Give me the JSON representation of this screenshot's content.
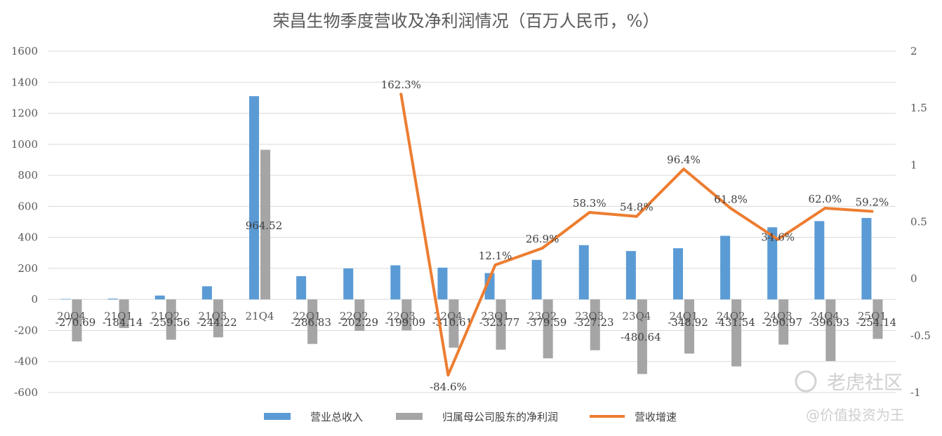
{
  "chart_data": {
    "type": "bar",
    "title": "荣昌生物季度营收及净利润情况（百万人民币，%）",
    "categories": [
      "20Q4",
      "21Q1",
      "21Q2",
      "21Q3",
      "21Q4",
      "22Q1",
      "22Q2",
      "22Q3",
      "22Q4",
      "23Q1",
      "23Q2",
      "23Q3",
      "23Q4",
      "24Q1",
      "24Q2",
      "24Q3",
      "24Q4",
      "25Q1"
    ],
    "category_labels": [
      "20Q4",
      "21Q1",
      "21Q2",
      "21Q3",
      "21Q4",
      "22Q1",
      "22Q2",
      "22Q3",
      "22Q4",
      "23Q1",
      "23Q2",
      "23Q3",
      "23Q4",
      "24Q1",
      "24Q2",
      "24Q3",
      "24Q4",
      "25Q1"
    ],
    "y_left": {
      "min": -600,
      "max": 1600,
      "ticks": [
        1600,
        1400,
        1200,
        1000,
        800,
        600,
        400,
        200,
        0,
        -200,
        -400,
        -600
      ],
      "tick_labels": [
        "1600",
        "1400",
        "1200",
        "1000",
        "800",
        "600",
        "400",
        "200",
        "0",
        "-200",
        "-400",
        "-600"
      ]
    },
    "y_right": {
      "min": -1,
      "max": 2,
      "ticks": [
        2,
        1.5,
        1,
        0.5,
        0,
        -0.5,
        -1
      ],
      "tick_labels": [
        "2",
        "1.5",
        "1",
        "0.5",
        "0",
        "-0.5",
        "-1"
      ]
    },
    "grid": true,
    "legend_position": "bottom",
    "series": [
      {
        "name": "营业总收入",
        "type": "bar",
        "axis": "left",
        "color": "#5b9bd5",
        "values": [
          3,
          5,
          25,
          85,
          1310,
          150,
          200,
          220,
          205,
          170,
          255,
          350,
          312,
          330,
          410,
          465,
          505,
          525
        ]
      },
      {
        "name": "归属母公司股东的净利润",
        "type": "bar",
        "axis": "left",
        "color": "#a5a5a5",
        "values": [
          -270.69,
          -184.14,
          -259.56,
          -244.22,
          964.52,
          -286.83,
          -202.29,
          -199.09,
          -310.61,
          -323.77,
          -379.59,
          -327.23,
          -480.64,
          -348.92,
          -431.54,
          -290.97,
          -396.93,
          -254.14
        ],
        "labels": [
          "-270.69",
          "-184.14",
          "-259.56",
          "-244.22",
          "964.52",
          "-286.83",
          "-202.29",
          "-199.09",
          "-310.61",
          "-323.77",
          "-379.59",
          "-327.23",
          "-480.64",
          "-348.92",
          "-431.54",
          "-290.97",
          "-396.93",
          "-254.14"
        ]
      },
      {
        "name": "营收增速",
        "type": "line",
        "axis": "right",
        "color": "#ed7d31",
        "points": [
          {
            "cat": "22Q3",
            "value": 1.623,
            "label": "162.3%"
          },
          {
            "cat": "22Q4",
            "value": -0.846,
            "label": "-84.6%"
          },
          {
            "cat": "23Q1",
            "value": 0.121,
            "label": "12.1%"
          },
          {
            "cat": "23Q2",
            "value": 0.269,
            "label": "26.9%"
          },
          {
            "cat": "23Q3",
            "value": 0.583,
            "label": "58.3%"
          },
          {
            "cat": "23Q4",
            "value": 0.548,
            "label": "54.8%"
          },
          {
            "cat": "24Q1",
            "value": 0.964,
            "label": "96.4%"
          },
          {
            "cat": "24Q2",
            "value": 0.618,
            "label": "61.8%"
          },
          {
            "cat": "24Q3",
            "value": 0.346,
            "label": "34.6%"
          },
          {
            "cat": "24Q4",
            "value": 0.62,
            "label": "62.0%"
          },
          {
            "cat": "25Q1",
            "value": 0.592,
            "label": "59.2%"
          }
        ]
      }
    ]
  },
  "watermark": {
    "brand": "老虎社区",
    "author": "@价值投资为王"
  }
}
